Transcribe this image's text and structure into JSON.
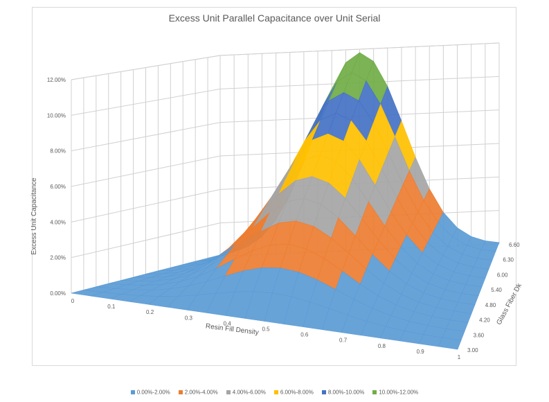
{
  "chart_data": {
    "type": "surface",
    "title": "Excess Unit Parallel Capacitance over Unit Serial",
    "xlabel": "Resin Fill Density",
    "ylabel": "Glass Fiber Dk",
    "zlabel": "Excess Unit Capacitance",
    "x_ticks": [
      "0",
      "0.1",
      "0.2",
      "0.3",
      "0.4",
      "0.5",
      "0.6",
      "0.7",
      "0.8",
      "0.9",
      "1"
    ],
    "y_ticks": [
      "3.00",
      "3.60",
      "4.20",
      "4.80",
      "5.40",
      "6.00",
      "6.30",
      "6.60"
    ],
    "z_ticks": [
      "0.00%",
      "2.00%",
      "4.00%",
      "6.00%",
      "8.00%",
      "10.00%",
      "12.00%"
    ],
    "zlim": [
      0,
      12
    ],
    "peak": {
      "x": 0.5,
      "y": 6.6,
      "z": 11.8
    },
    "bands": [
      {
        "label": "0.00%-2.00%",
        "color": "#5b9bd5"
      },
      {
        "label": "2.00%-4.00%",
        "color": "#ed7d31"
      },
      {
        "label": "4.00%-6.00%",
        "color": "#a5a5a5"
      },
      {
        "label": "6.00%-8.00%",
        "color": "#ffc000"
      },
      {
        "label": "8.00%-10.00%",
        "color": "#4472c4"
      },
      {
        "label": "10.00%-12.00%",
        "color": "#70ad47"
      }
    ],
    "legend_position": "bottom",
    "grid": true
  }
}
